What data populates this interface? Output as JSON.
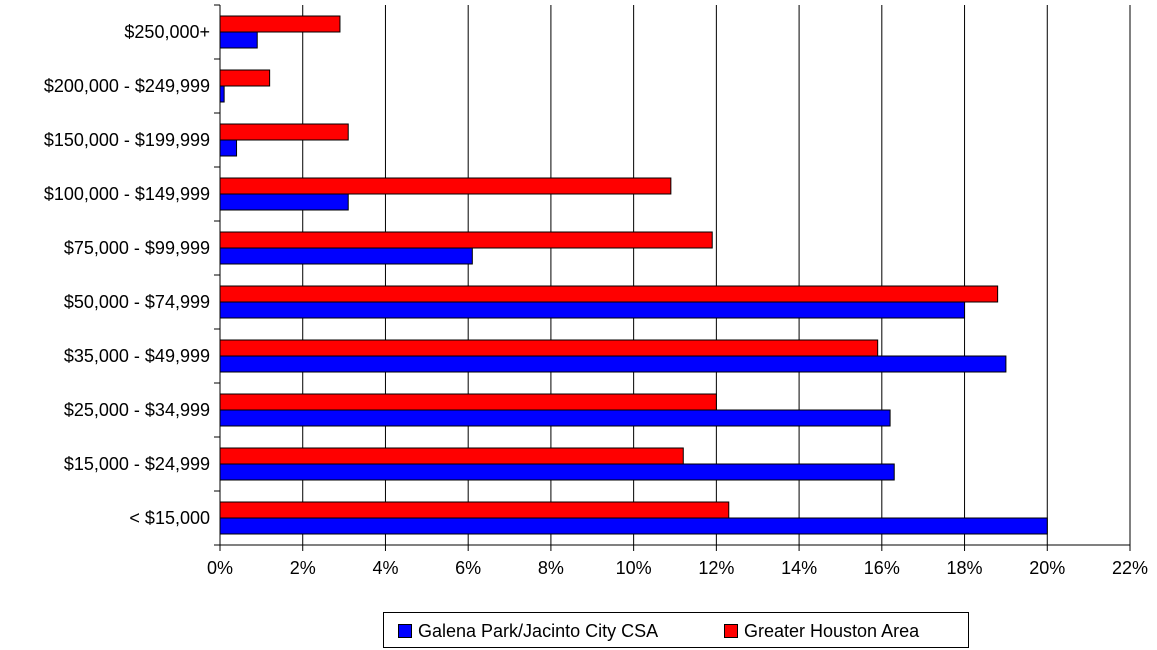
{
  "chart_data": {
    "type": "bar",
    "orientation": "horizontal",
    "categories": [
      "< $15,000",
      "$15,000 - $24,999",
      "$25,000 - $34,999",
      "$35,000 - $49,999",
      "$50,000 - $74,999",
      "$75,000 - $99,999",
      "$100,000 - $149,999",
      "$150,000 - $199,999",
      "$200,000 - $249,999",
      "$250,000+"
    ],
    "series": [
      {
        "name": "Galena Park/Jacinto City CSA",
        "color": "#0000ff",
        "values": [
          20.0,
          16.3,
          16.2,
          19.0,
          18.0,
          6.1,
          3.1,
          0.4,
          0.1,
          0.9
        ]
      },
      {
        "name": "Greater Houston Area",
        "color": "#ff0000",
        "values": [
          12.3,
          11.2,
          12.0,
          15.9,
          18.8,
          11.9,
          10.9,
          3.1,
          1.2,
          2.9
        ]
      }
    ],
    "xlim": [
      0,
      22
    ],
    "xticks": [
      "0%",
      "2%",
      "4%",
      "6%",
      "8%",
      "10%",
      "12%",
      "14%",
      "16%",
      "18%",
      "20%",
      "22%"
    ],
    "grid": "vertical",
    "legend": "bottom",
    "title": "",
    "xlabel": "",
    "ylabel": ""
  }
}
